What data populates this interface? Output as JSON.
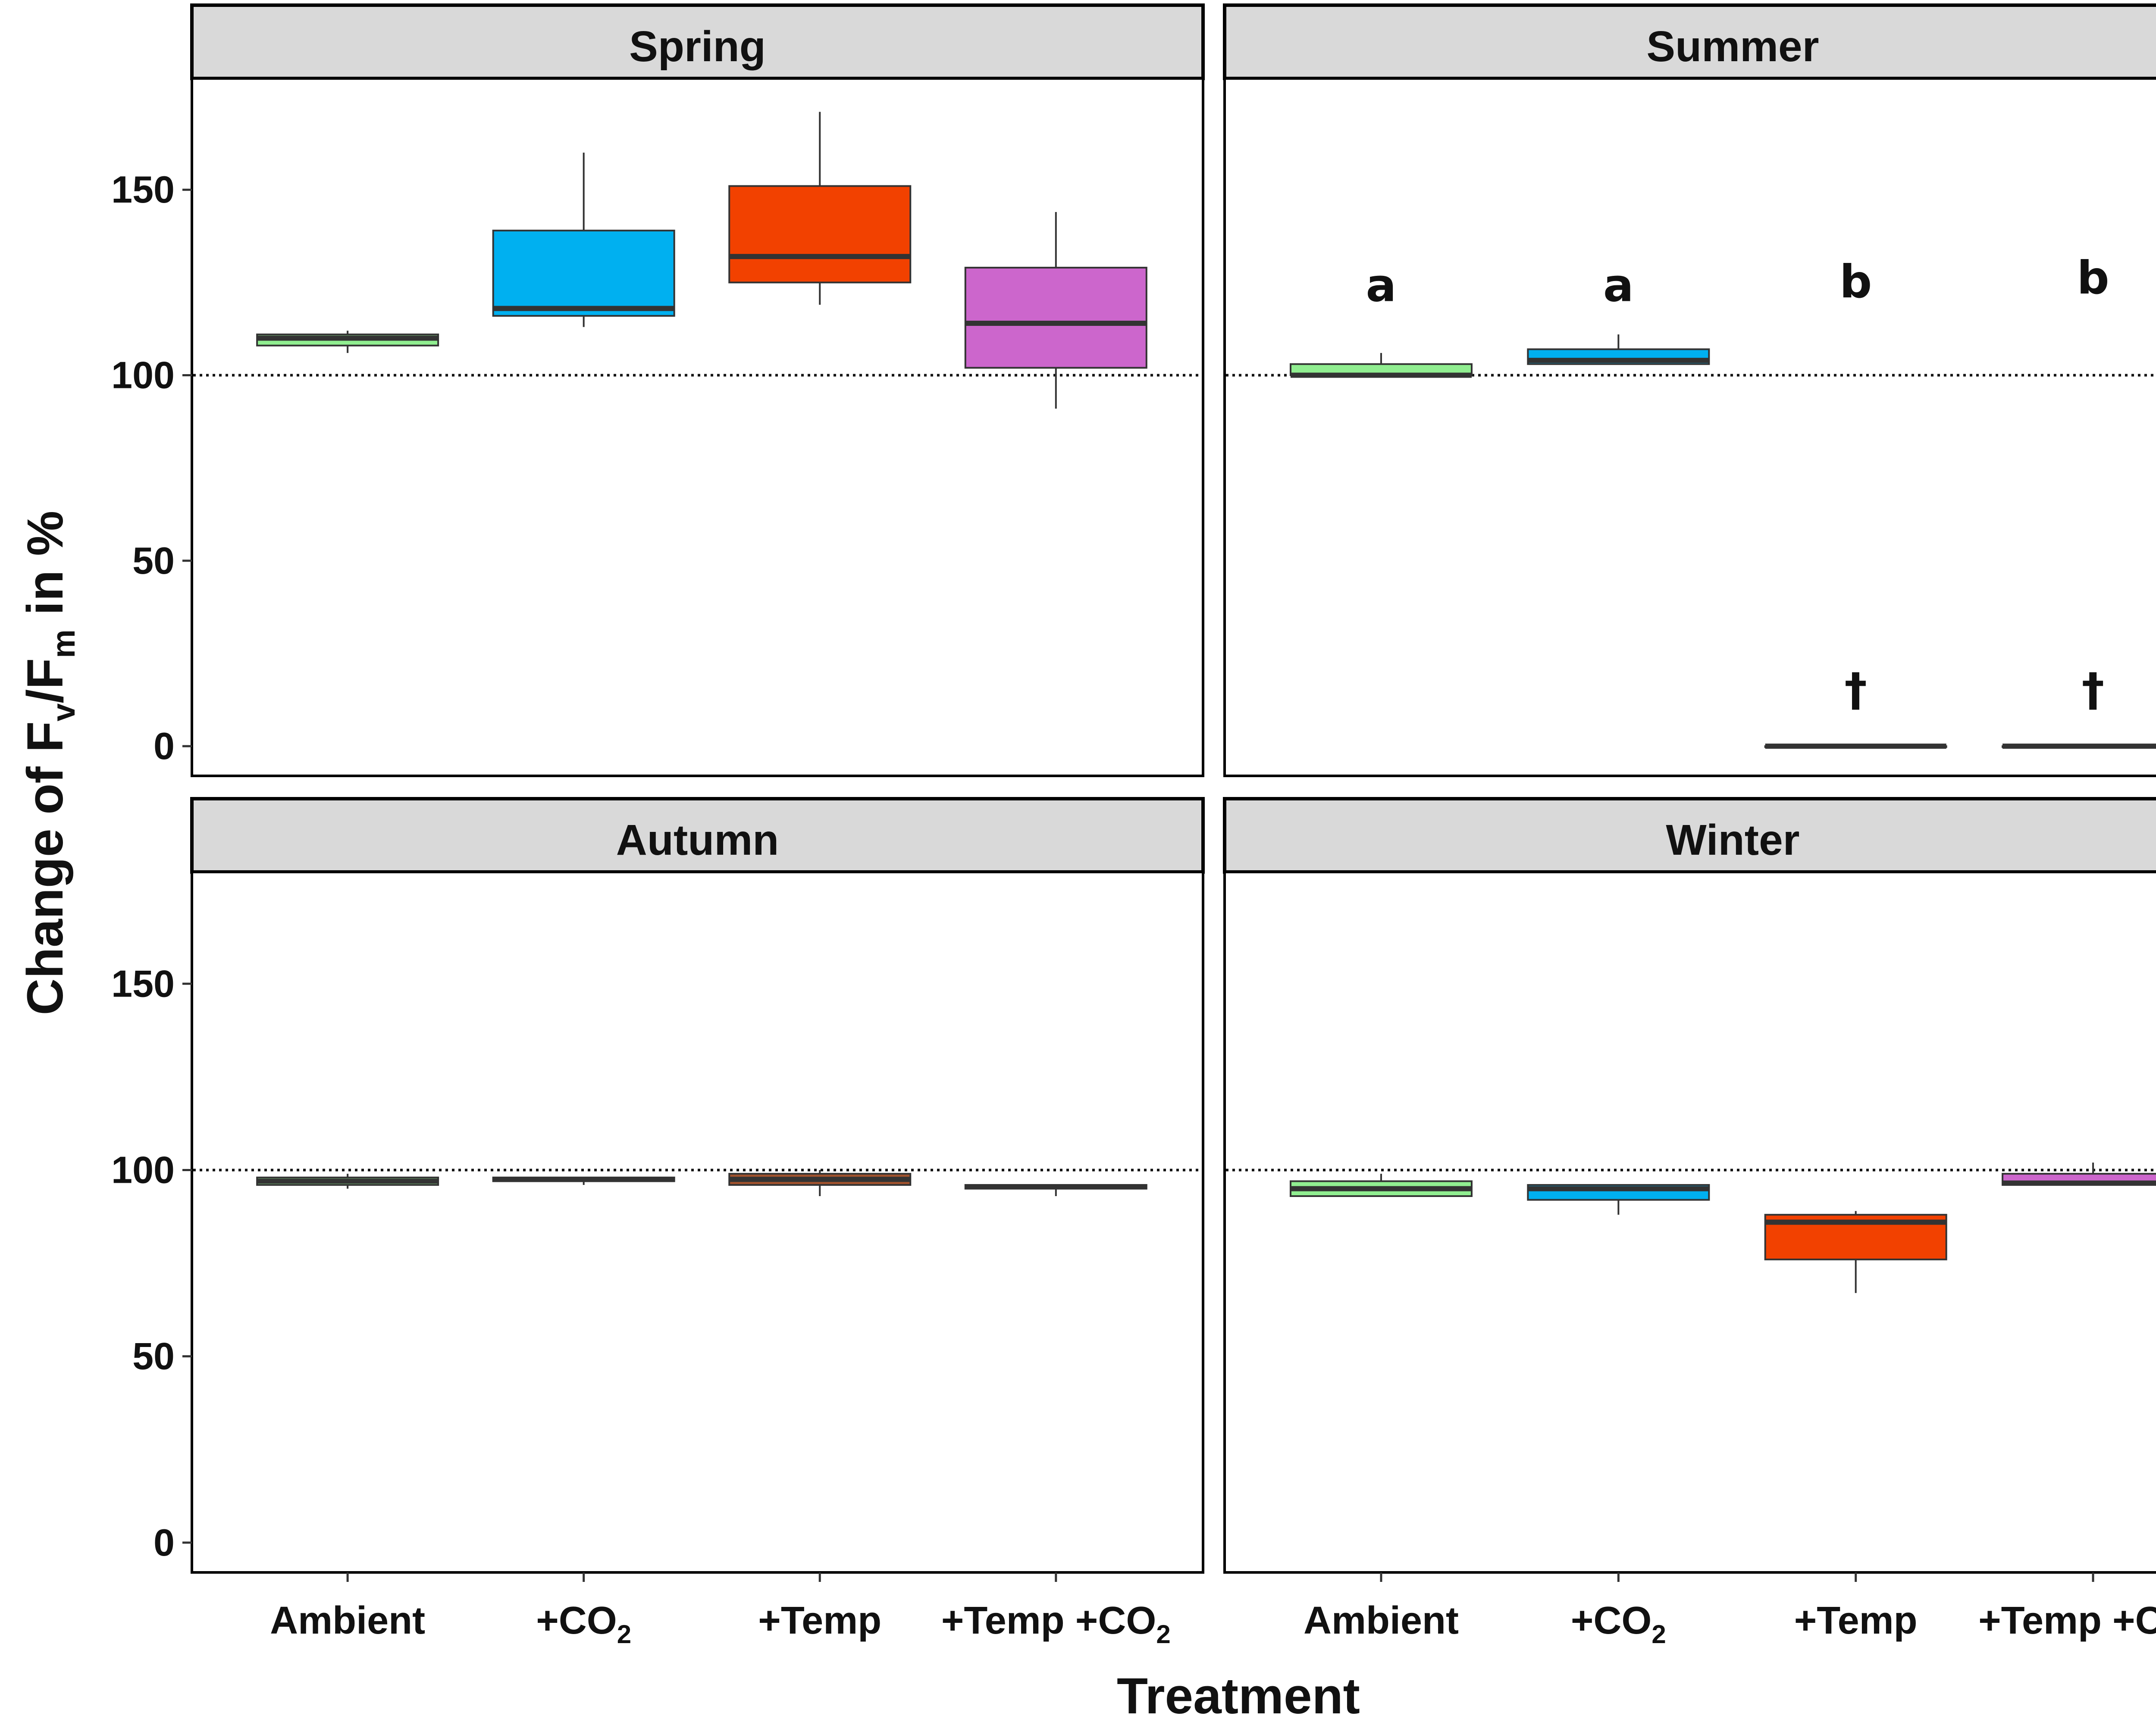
{
  "chart_data": {
    "type": "boxplot",
    "xlabel": "Treatment",
    "ylabel_parts": [
      "Change of F",
      "v",
      "/F",
      "m",
      " in %"
    ],
    "ylim": [
      -8,
      180
    ],
    "yticks": [
      0,
      50,
      100,
      150
    ],
    "reference_line": 100,
    "categories": [
      {
        "main": "Ambient",
        "sub": "",
        "after": ""
      },
      {
        "main": "+CO",
        "sub": "2",
        "after": ""
      },
      {
        "main": "+Temp",
        "sub": "",
        "after": ""
      },
      {
        "main": "+Temp +CO",
        "sub": "2",
        "after": ""
      }
    ],
    "colors": {
      "Ambient": "#90ee90",
      "+CO2": "#00b0f0",
      "+Temp": "#f24100",
      "+Temp +CO2": "#cc66cc",
      "dark_box": "#a0522d"
    },
    "panels": [
      {
        "title": "Spring",
        "boxes": [
          {
            "treatment": "Ambient",
            "min": 106,
            "q1": 108,
            "median": 110,
            "q3": 111,
            "max": 112,
            "color": "#90ee90"
          },
          {
            "treatment": "+CO2",
            "min": 113,
            "q1": 116,
            "median": 118,
            "q3": 139,
            "max": 160,
            "color": "#00b0f0"
          },
          {
            "treatment": "+Temp",
            "min": 119,
            "q1": 125,
            "median": 132,
            "q3": 151,
            "max": 171,
            "color": "#f24100"
          },
          {
            "treatment": "+Temp +CO2",
            "min": 91,
            "q1": 102,
            "median": 114,
            "q3": 129,
            "max": 144,
            "color": "#cc66cc"
          }
        ],
        "annotations": []
      },
      {
        "title": "Summer",
        "boxes": [
          {
            "treatment": "Ambient",
            "min": 100,
            "q1": 100,
            "median": 100,
            "q3": 103,
            "max": 106,
            "color": "#90ee90"
          },
          {
            "treatment": "+CO2",
            "min": 103,
            "q1": 103,
            "median": 104,
            "q3": 107,
            "max": 111,
            "color": "#00b0f0"
          },
          {
            "treatment": "+Temp",
            "min": 0,
            "q1": 0,
            "median": 0,
            "q3": 0,
            "max": 0,
            "color": "#f24100"
          },
          {
            "treatment": "+Temp +CO2",
            "min": 0,
            "q1": 0,
            "median": 0,
            "q3": 0,
            "max": 0,
            "color": "#cc66cc"
          }
        ],
        "annotations": [
          {
            "category_index": 0,
            "y": 120,
            "text": "a"
          },
          {
            "category_index": 1,
            "y": 120,
            "text": "a"
          },
          {
            "category_index": 2,
            "y": 121,
            "text": "b"
          },
          {
            "category_index": 3,
            "y": 122,
            "text": "b"
          },
          {
            "category_index": 2,
            "y": 11,
            "text": "†"
          },
          {
            "category_index": 3,
            "y": 11,
            "text": "†"
          }
        ]
      },
      {
        "title": "Autumn",
        "boxes": [
          {
            "treatment": "Ambient",
            "min": 95,
            "q1": 96,
            "median": 97,
            "q3": 98,
            "max": 99,
            "color": "#90ee90"
          },
          {
            "treatment": "+CO2",
            "min": 96,
            "q1": 97,
            "median": 97.5,
            "q3": 98,
            "max": 98,
            "color": "#00b0f0"
          },
          {
            "treatment": "+Temp",
            "min": 93,
            "q1": 96,
            "median": 97.5,
            "q3": 99,
            "max": 100,
            "color": "#a0522d"
          },
          {
            "treatment": "+Temp +CO2",
            "min": 93,
            "q1": 95,
            "median": 95.5,
            "q3": 96,
            "max": 96,
            "color": "#cc66cc"
          }
        ],
        "annotations": []
      },
      {
        "title": "Winter",
        "boxes": [
          {
            "treatment": "Ambient",
            "min": 93,
            "q1": 93,
            "median": 95,
            "q3": 97,
            "max": 99,
            "color": "#90ee90"
          },
          {
            "treatment": "+CO2",
            "min": 88,
            "q1": 92,
            "median": 95,
            "q3": 96,
            "max": 96,
            "color": "#00b0f0"
          },
          {
            "treatment": "+Temp",
            "min": 67,
            "q1": 76,
            "median": 86,
            "q3": 88,
            "max": 89,
            "color": "#f24100"
          },
          {
            "treatment": "+Temp +CO2",
            "min": 96,
            "q1": 96,
            "median": 96.5,
            "q3": 99,
            "max": 102,
            "color": "#cc66cc"
          }
        ],
        "annotations": []
      }
    ]
  }
}
